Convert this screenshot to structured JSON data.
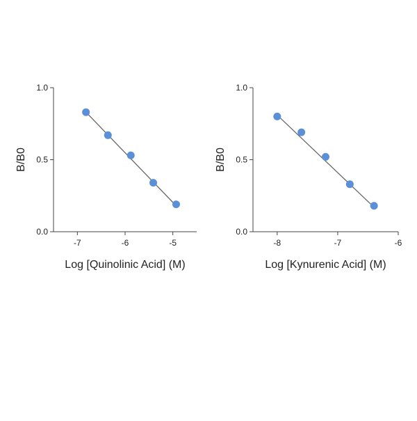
{
  "chart_data": [
    {
      "type": "scatter",
      "title": "",
      "xlabel": "Log [Quinolinic Acid] (M)",
      "ylabel": "B/B0",
      "xlim": [
        -7.5,
        -4.5
      ],
      "ylim": [
        0,
        1
      ],
      "xticks": [
        -7,
        -6,
        -5
      ],
      "xtick_labels": [
        "-7",
        "-6",
        "-5"
      ],
      "yticks": [
        0,
        0.5,
        1
      ],
      "ytick_labels": [
        "0.0",
        "0.5",
        "1.0"
      ],
      "grid": false,
      "legend": "none",
      "marker_color": "#5b8fd6",
      "line_color": "#666666",
      "series": [
        {
          "x": [
            -6.82,
            -6.36,
            -5.88,
            -5.41,
            -4.93
          ],
          "y": [
            0.83,
            0.67,
            0.53,
            0.34,
            0.19
          ]
        }
      ],
      "fit_line": {
        "x": [
          -6.82,
          -4.93
        ],
        "y": [
          0.83,
          0.18
        ]
      }
    },
    {
      "type": "scatter",
      "title": "",
      "xlabel": "Log [Kynurenic Acid] (M)",
      "ylabel": "B/B0",
      "xlim": [
        -8.4,
        -6
      ],
      "ylim": [
        0,
        1
      ],
      "xticks": [
        -8,
        -7,
        -6
      ],
      "xtick_labels": [
        "-8",
        "-7",
        "-6"
      ],
      "yticks": [
        0,
        0.5,
        1
      ],
      "ytick_labels": [
        "0.0",
        "0.5",
        "1.0"
      ],
      "grid": false,
      "legend": "none",
      "marker_color": "#5b8fd6",
      "line_color": "#666666",
      "series": [
        {
          "x": [
            -8.0,
            -7.6,
            -7.2,
            -6.8,
            -6.4
          ],
          "y": [
            0.8,
            0.69,
            0.52,
            0.33,
            0.18
          ]
        }
      ],
      "fit_line": {
        "x": [
          -8.0,
          -6.4
        ],
        "y": [
          0.81,
          0.17
        ]
      }
    }
  ]
}
